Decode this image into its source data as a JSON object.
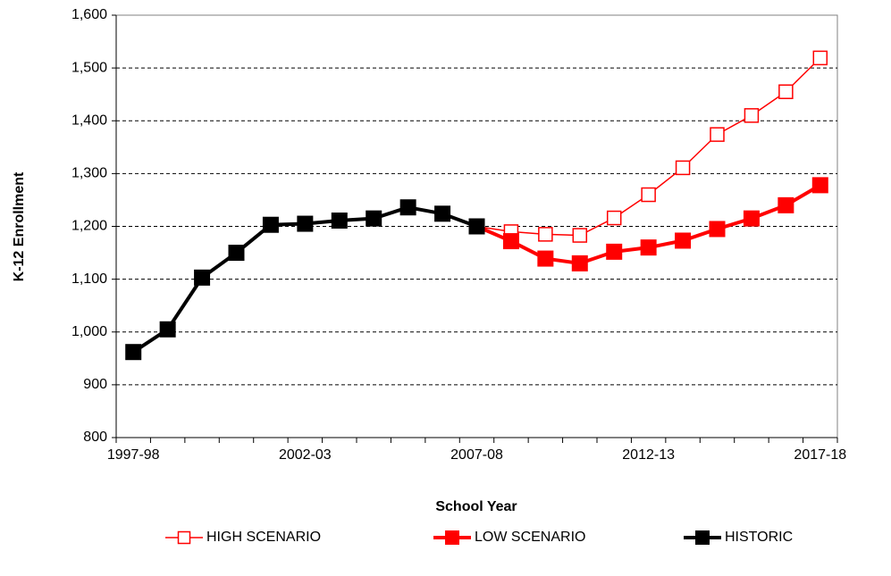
{
  "chart_data": {
    "type": "line",
    "x_label": "School Year",
    "y_label": "K-12 Enrollment",
    "categories": [
      "1997-98",
      null,
      null,
      null,
      null,
      "2002-03",
      null,
      null,
      null,
      null,
      "2007-08",
      null,
      null,
      null,
      null,
      "2012-13",
      null,
      null,
      null,
      null,
      "2017-18"
    ],
    "series": [
      {
        "name": "HIGH SCENARIO",
        "color": "#ff0000",
        "marker": "hollow-square",
        "values": [
          null,
          null,
          null,
          null,
          null,
          null,
          null,
          null,
          null,
          null,
          1200,
          1190,
          1185,
          1183,
          1216,
          1260,
          1311,
          1374,
          1410,
          1455,
          1519
        ]
      },
      {
        "name": "LOW SCENARIO",
        "color": "#ff0000",
        "marker": "square",
        "values": [
          null,
          null,
          null,
          null,
          null,
          null,
          null,
          null,
          null,
          null,
          1200,
          1172,
          1139,
          1130,
          1152,
          1160,
          1173,
          1195,
          1215,
          1240,
          1278
        ]
      },
      {
        "name": "HISTORIC",
        "color": "#000000",
        "marker": "square",
        "values": [
          962,
          1005,
          1103,
          1150,
          1203,
          1205,
          1211,
          1215,
          1236,
          1224,
          1200,
          null,
          null,
          null,
          null,
          null,
          null,
          null,
          null,
          null,
          null
        ]
      }
    ],
    "ylim": [
      800,
      1600
    ],
    "yticks": [
      800,
      900,
      {
        "value": 1000,
        "label": "1,000"
      },
      {
        "value": 1100,
        "label": "1,100"
      },
      {
        "value": 1200,
        "label": "1,200"
      },
      {
        "value": 1300,
        "label": "1,300"
      },
      {
        "value": 1400,
        "label": "1,400"
      },
      {
        "value": 1500,
        "label": "1,500"
      },
      {
        "value": 1600,
        "label": "1,600"
      }
    ],
    "grid": true,
    "legend": "bottom"
  }
}
